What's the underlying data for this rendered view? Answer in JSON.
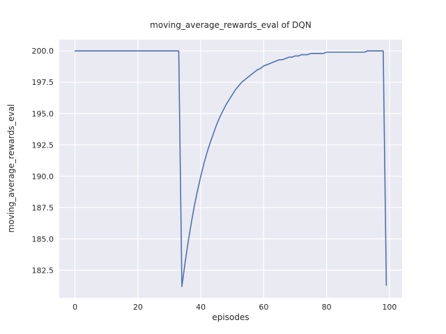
{
  "chart_data": {
    "type": "line",
    "title": "moving_average_rewards_eval of DQN",
    "xlabel": "episodes",
    "ylabel": "moving_average_rewards_eval",
    "plot_bg": "#eaeaf2",
    "grid_color": "#ffffff",
    "line_color": "#4c72b0",
    "grid": true,
    "legend": "none",
    "xlim": [
      -5,
      104
    ],
    "ylim": [
      180.3,
      200.9
    ],
    "xticks": [
      0,
      20,
      40,
      60,
      80,
      100
    ],
    "xtick_labels": [
      "0",
      "20",
      "40",
      "60",
      "80",
      "100"
    ],
    "yticks": [
      182.5,
      185.0,
      187.5,
      190.0,
      192.5,
      195.0,
      197.5,
      200.0
    ],
    "ytick_labels": [
      "182.5",
      "185.0",
      "187.5",
      "190.0",
      "192.5",
      "195.0",
      "197.5",
      "200.0"
    ],
    "x": [
      0,
      1,
      2,
      3,
      4,
      5,
      6,
      7,
      8,
      9,
      10,
      11,
      12,
      13,
      14,
      15,
      16,
      17,
      18,
      19,
      20,
      21,
      22,
      23,
      24,
      25,
      26,
      27,
      28,
      29,
      30,
      31,
      32,
      33,
      34,
      35,
      36,
      37,
      38,
      39,
      40,
      41,
      42,
      43,
      44,
      45,
      46,
      47,
      48,
      49,
      50,
      51,
      52,
      53,
      54,
      55,
      56,
      57,
      58,
      59,
      60,
      61,
      62,
      63,
      64,
      65,
      66,
      67,
      68,
      69,
      70,
      71,
      72,
      73,
      74,
      75,
      76,
      77,
      78,
      79,
      80,
      81,
      82,
      83,
      84,
      85,
      86,
      87,
      88,
      89,
      90,
      91,
      92,
      93,
      94,
      95,
      96,
      97,
      98,
      99
    ],
    "y": [
      200.0,
      200.0,
      200.0,
      200.0,
      200.0,
      200.0,
      200.0,
      200.0,
      200.0,
      200.0,
      200.0,
      200.0,
      200.0,
      200.0,
      200.0,
      200.0,
      200.0,
      200.0,
      200.0,
      200.0,
      200.0,
      200.0,
      200.0,
      200.0,
      200.0,
      200.0,
      200.0,
      200.0,
      200.0,
      200.0,
      200.0,
      200.0,
      200.0,
      200.0,
      181.2,
      183.1,
      184.8,
      186.3,
      187.7,
      188.9,
      190.0,
      191.0,
      191.9,
      192.7,
      193.4,
      194.1,
      194.7,
      195.2,
      195.7,
      196.1,
      196.5,
      196.9,
      197.2,
      197.5,
      197.7,
      197.9,
      198.1,
      198.3,
      198.5,
      198.6,
      198.8,
      198.9,
      199.0,
      199.1,
      199.2,
      199.3,
      199.3,
      199.4,
      199.5,
      199.5,
      199.6,
      199.6,
      199.7,
      199.7,
      199.7,
      199.8,
      199.8,
      199.8,
      199.8,
      199.8,
      199.9,
      199.9,
      199.9,
      199.9,
      199.9,
      199.9,
      199.9,
      199.9,
      199.9,
      199.9,
      199.9,
      199.9,
      199.9,
      200.0,
      200.0,
      200.0,
      200.0,
      200.0,
      200.0,
      181.3
    ]
  }
}
